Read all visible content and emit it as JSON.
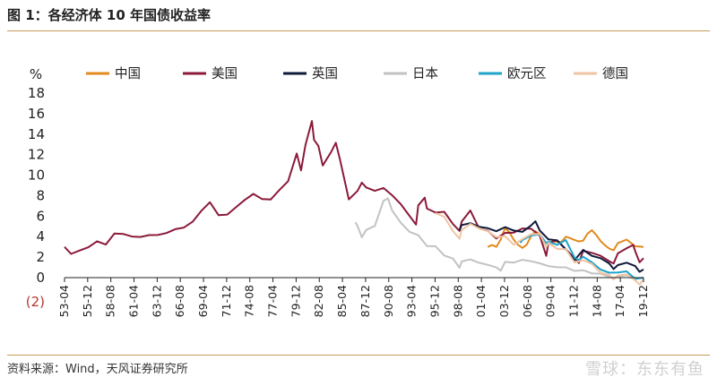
{
  "figure": {
    "title": "图 1：各经济体 10 年国债收益率",
    "source": "资料来源：Wind，天风证券研究所",
    "watermark": "雪球：东东有鱼"
  },
  "chart_data": {
    "type": "line",
    "ylabel": "%",
    "ylim": [
      0,
      18
    ],
    "y_ticks": [
      0,
      2,
      4,
      6,
      8,
      10,
      12,
      14,
      16,
      18
    ],
    "y_extra_label": "(2)",
    "x_range": [
      1953.25,
      2019.95
    ],
    "x_tick_labels": [
      "53-04",
      "55-12",
      "58-08",
      "61-04",
      "63-12",
      "66-08",
      "69-04",
      "71-12",
      "74-08",
      "77-04",
      "79-12",
      "82-08",
      "85-04",
      "87-12",
      "90-08",
      "93-04",
      "95-12",
      "98-08",
      "01-04",
      "03-12",
      "06-08",
      "09-04",
      "11-12",
      "14-08",
      "17-04",
      "19-12"
    ],
    "grid": false,
    "legend_position": "top",
    "series": [
      {
        "name": "中国",
        "color": "#e08a1e",
        "x": [
          2002.0,
          2002.5,
          2003.0,
          2003.5,
          2004.0,
          2004.5,
          2005.0,
          2005.5,
          2006.0,
          2006.5,
          2007.0,
          2007.5,
          2008.0,
          2008.5,
          2009.0,
          2009.5,
          2010.0,
          2010.5,
          2011.0,
          2011.5,
          2012.0,
          2012.5,
          2013.0,
          2013.5,
          2014.0,
          2014.5,
          2015.0,
          2015.5,
          2016.0,
          2016.5,
          2017.0,
          2017.5,
          2018.0,
          2018.5,
          2019.0,
          2019.5,
          2019.95
        ],
        "y": [
          3.0,
          3.3,
          3.2,
          3.8,
          4.9,
          4.6,
          3.8,
          3.2,
          3.0,
          3.3,
          4.0,
          4.5,
          4.3,
          3.4,
          3.2,
          3.5,
          3.4,
          3.3,
          3.9,
          3.8,
          3.5,
          3.4,
          3.6,
          4.2,
          4.5,
          4.2,
          3.6,
          3.1,
          2.9,
          2.8,
          3.4,
          3.6,
          3.9,
          3.5,
          3.1,
          3.2,
          3.0
        ]
      },
      {
        "name": "美国",
        "color": "#8b1a3a",
        "x": [
          1953.25,
          1954.0,
          1955.0,
          1956.0,
          1957.0,
          1958.0,
          1959.0,
          1960.0,
          1961.0,
          1962.0,
          1963.0,
          1964.0,
          1965.0,
          1966.0,
          1967.0,
          1968.0,
          1969.0,
          1970.0,
          1971.0,
          1972.0,
          1973.0,
          1974.0,
          1975.0,
          1976.0,
          1977.0,
          1978.0,
          1979.0,
          1980.0,
          1980.5,
          1981.0,
          1981.75,
          1982.0,
          1982.5,
          1983.0,
          1984.0,
          1984.5,
          1985.0,
          1986.0,
          1987.0,
          1987.5,
          1988.0,
          1989.0,
          1990.0,
          1991.0,
          1992.0,
          1993.0,
          1993.75,
          1994.0,
          1994.75,
          1995.0,
          1996.0,
          1997.0,
          1998.0,
          1998.75,
          1999.0,
          2000.0,
          2001.0,
          2002.0,
          2003.0,
          2004.0,
          2005.0,
          2006.0,
          2007.0,
          2008.0,
          2008.75,
          2009.0,
          2010.0,
          2011.0,
          2012.0,
          2012.5,
          2013.0,
          2014.0,
          2015.0,
          2016.0,
          2016.5,
          2017.0,
          2018.0,
          2018.75,
          2019.0,
          2019.5,
          2019.95
        ],
        "y": [
          3.0,
          2.5,
          2.7,
          3.0,
          3.6,
          3.1,
          4.3,
          4.1,
          3.9,
          3.9,
          4.0,
          4.2,
          4.3,
          4.8,
          5.0,
          5.5,
          6.7,
          7.4,
          6.2,
          6.2,
          6.8,
          7.6,
          8.0,
          7.6,
          7.5,
          8.4,
          9.4,
          12.0,
          10.5,
          13.0,
          15.3,
          13.5,
          13.0,
          11.0,
          12.5,
          13.3,
          11.5,
          7.8,
          8.5,
          9.4,
          8.8,
          8.5,
          8.6,
          8.0,
          7.0,
          5.9,
          5.3,
          7.0,
          7.9,
          6.6,
          6.4,
          6.4,
          5.3,
          4.5,
          5.6,
          6.6,
          5.0,
          4.6,
          3.9,
          4.4,
          4.3,
          4.8,
          4.6,
          4.0,
          2.3,
          3.3,
          3.5,
          2.8,
          1.8,
          1.5,
          2.7,
          2.5,
          2.2,
          1.8,
          1.5,
          2.4,
          3.0,
          3.2,
          2.6,
          1.6,
          1.9
        ]
      },
      {
        "name": "英国",
        "color": "#101a3a",
        "x": [
          1998.75,
          1999.0,
          2000.0,
          2001.0,
          2002.0,
          2003.0,
          2004.0,
          2005.0,
          2006.0,
          2007.0,
          2007.5,
          2008.0,
          2009.0,
          2010.0,
          2011.0,
          2012.0,
          2013.0,
          2014.0,
          2015.0,
          2016.0,
          2016.5,
          2017.0,
          2018.0,
          2019.0,
          2019.5,
          2019.95
        ],
        "y": [
          4.6,
          5.3,
          5.3,
          5.0,
          4.8,
          4.4,
          4.9,
          4.4,
          4.4,
          5.0,
          5.5,
          4.5,
          3.8,
          3.6,
          2.9,
          1.8,
          2.8,
          2.3,
          1.9,
          1.5,
          0.8,
          1.2,
          1.4,
          1.1,
          0.5,
          0.8
        ]
      },
      {
        "name": "日本",
        "color": "#c2c2c2",
        "x": [
          1986.75,
          1987.0,
          1987.5,
          1988.0,
          1989.0,
          1990.0,
          1990.5,
          1991.0,
          1992.0,
          1993.0,
          1994.0,
          1995.0,
          1996.0,
          1997.0,
          1998.0,
          1998.75,
          1999.0,
          2000.0,
          2001.0,
          2002.0,
          2003.0,
          2003.5,
          2004.0,
          2005.0,
          2006.0,
          2007.0,
          2008.0,
          2009.0,
          2010.0,
          2011.0,
          2012.0,
          2013.0,
          2014.0,
          2015.0,
          2016.0,
          2016.5,
          2017.0,
          2018.0,
          2019.0,
          2019.95
        ],
        "y": [
          5.4,
          5.0,
          3.8,
          4.5,
          5.0,
          7.5,
          7.8,
          6.5,
          5.5,
          4.5,
          4.3,
          3.2,
          3.1,
          2.3,
          1.8,
          0.9,
          1.6,
          1.7,
          1.3,
          1.2,
          0.8,
          0.6,
          1.5,
          1.4,
          1.7,
          1.7,
          1.4,
          1.3,
          1.1,
          1.1,
          0.8,
          0.7,
          0.5,
          0.3,
          0.0,
          -0.2,
          0.05,
          0.05,
          -0.1,
          -0.05
        ]
      },
      {
        "name": "欧元区",
        "color": "#1fa3c8",
        "x": [
          2005.75,
          2006.0,
          2007.0,
          2008.0,
          2008.75,
          2009.0,
          2010.0,
          2011.0,
          2012.0,
          2012.5,
          2013.0,
          2014.0,
          2015.0,
          2016.0,
          2017.0,
          2018.0,
          2019.0,
          2019.95
        ],
        "y": [
          3.4,
          3.7,
          4.3,
          4.3,
          3.2,
          3.6,
          3.3,
          3.6,
          2.0,
          1.6,
          1.9,
          1.4,
          0.7,
          0.3,
          0.5,
          0.5,
          -0.1,
          0.0
        ]
      },
      {
        "name": "德国",
        "color": "#f0c4a2",
        "x": [
          1996.0,
          1997.0,
          1998.0,
          1998.75,
          1999.0,
          2000.0,
          2001.0,
          2002.0,
          2003.0,
          2004.0,
          2005.0,
          2006.0,
          2007.0,
          2008.0,
          2008.75,
          2009.0,
          2010.0,
          2011.0,
          2012.0,
          2013.0,
          2014.0,
          2015.0,
          2016.0,
          2016.5,
          2017.0,
          2018.0,
          2019.0,
          2019.5,
          2019.95
        ],
        "y": [
          6.3,
          5.8,
          4.5,
          3.9,
          4.5,
          5.3,
          4.8,
          4.6,
          4.1,
          4.1,
          3.4,
          3.8,
          4.3,
          4.3,
          3.0,
          3.3,
          2.8,
          2.6,
          1.4,
          1.6,
          1.2,
          0.5,
          0.2,
          -0.1,
          0.3,
          0.4,
          -0.2,
          -0.6,
          -0.2
        ]
      }
    ]
  }
}
